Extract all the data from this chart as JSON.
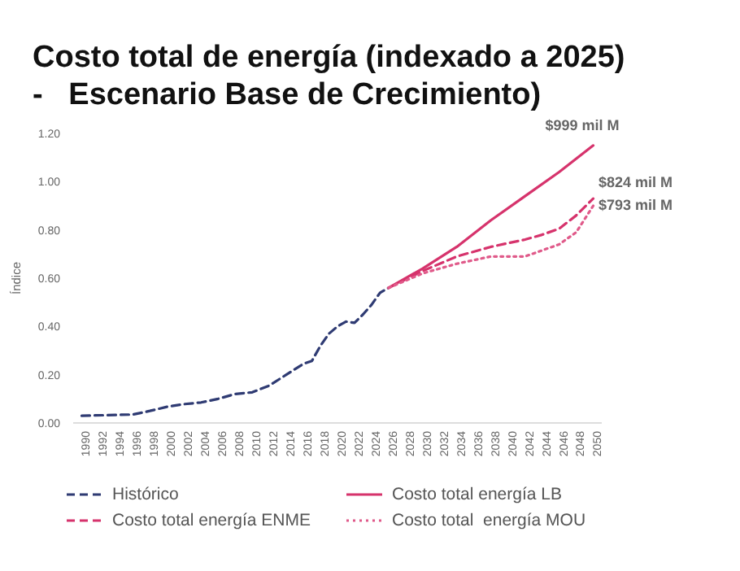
{
  "chart_data": {
    "type": "line",
    "title": "Costo total de energía (indexado a 2025)\n-   Escenario Base de Crecimiento)",
    "ylabel": "Índice",
    "xlim": [
      1989,
      2051
    ],
    "xticks": [
      1990,
      1992,
      1994,
      1996,
      1998,
      2000,
      2002,
      2004,
      2006,
      2008,
      2010,
      2012,
      2014,
      2016,
      2018,
      2020,
      2022,
      2024,
      2026,
      2028,
      2030,
      2032,
      2034,
      2036,
      2038,
      2040,
      2042,
      2044,
      2046,
      2048,
      2050
    ],
    "ylim": [
      0,
      1.2
    ],
    "yticks": [
      {
        "value": 0,
        "label": "0.00"
      },
      {
        "value": 0.2,
        "label": "0.20"
      },
      {
        "value": 0.4,
        "label": "0.40"
      },
      {
        "value": 0.6,
        "label": "0.60"
      },
      {
        "value": 0.8,
        "label": "0.80"
      },
      {
        "value": 1,
        "label": "1.00"
      },
      {
        "value": 1.2,
        "label": "1.20"
      }
    ],
    "marker": "none",
    "legend": "bottom",
    "series": [
      {
        "name": "Histórico",
        "color": "#2f3b73",
        "line_style": "dashed",
        "x": [
          1990,
          1996,
          1998,
          2000,
          2002,
          2004,
          2006,
          2008,
          2010,
          2012,
          2014,
          2016,
          2017,
          2018,
          2019,
          2020,
          2021,
          2022,
          2023,
          2024,
          2025,
          2026
        ],
        "values": [
          0.03,
          0.035,
          0.05,
          0.067,
          0.078,
          0.085,
          0.1,
          0.12,
          0.127,
          0.155,
          0.2,
          0.245,
          0.257,
          0.32,
          0.37,
          0.4,
          0.42,
          0.415,
          0.45,
          0.49,
          0.54,
          0.56
        ]
      },
      {
        "name": "Costo total energía LB",
        "color": "#d6336c",
        "line_style": "solid",
        "x": [
          2026,
          2030,
          2034,
          2038,
          2042,
          2046,
          2050
        ],
        "values": [
          0.56,
          0.64,
          0.73,
          0.84,
          0.94,
          1.04,
          1.15
        ]
      },
      {
        "name": "Costo total energía ENME",
        "color": "#d6336c",
        "line_style": "dashed",
        "x": [
          2026,
          2030,
          2034,
          2038,
          2042,
          2044,
          2046,
          2048,
          2050
        ],
        "values": [
          0.56,
          0.63,
          0.69,
          0.73,
          0.76,
          0.78,
          0.805,
          0.86,
          0.93
        ]
      },
      {
        "name": "Costo total  energía MOU",
        "color": "#e05a8a",
        "line_style": "dotted",
        "x": [
          2026,
          2030,
          2034,
          2038,
          2042,
          2046,
          2048,
          2050
        ],
        "values": [
          0.56,
          0.62,
          0.66,
          0.69,
          0.69,
          0.74,
          0.79,
          0.9
        ]
      }
    ],
    "annotations": [
      "$999 mil M",
      "$824 mil M",
      "$793 mil M"
    ]
  }
}
